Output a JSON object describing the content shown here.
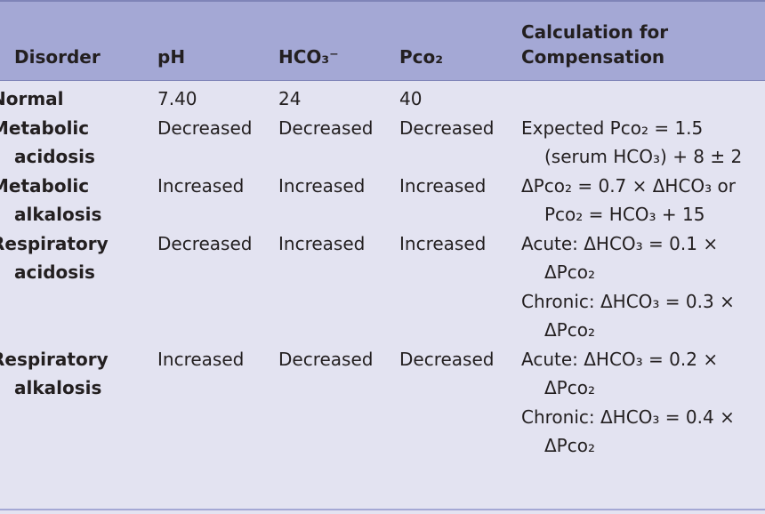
{
  "table": {
    "header": [
      "Disorder",
      "pH",
      "HCO₃⁻",
      "Pco₂",
      "Calculation for Compensation"
    ],
    "rows": [
      [
        "Normal",
        "7.40",
        "24",
        "40"
      ],
      [
        "Metabolic acidosis",
        "Decreased",
        "Decreased",
        "Decreased",
        [
          "Expected Pco₂ = 1.5 (serum HCO₃) + 8 ± 2"
        ]
      ],
      [
        "Metabolic alkalosis",
        "Increased",
        "Increased",
        "Increased",
        [
          "ΔPco₂ = 0.7 × ΔHCO₃ or Pco₂ = HCO₃ + 15"
        ]
      ],
      [
        "Respiratory acidosis",
        "Decreased",
        "Increased",
        "Increased",
        [
          "Acute: ΔHCO₃ = 0.1 × ΔPco₂",
          "Chronic: ΔHCO₃ = 0.3 × ΔPco₂"
        ]
      ],
      [
        "Respiratory alkalosis",
        "Increased",
        "Decreased",
        "Decreased",
        [
          "Acute: ΔHCO₃ = 0.2 × ΔPco₂",
          "Chronic: ΔHCO₃ = 0.4 × ΔPco₂"
        ]
      ]
    ]
  }
}
